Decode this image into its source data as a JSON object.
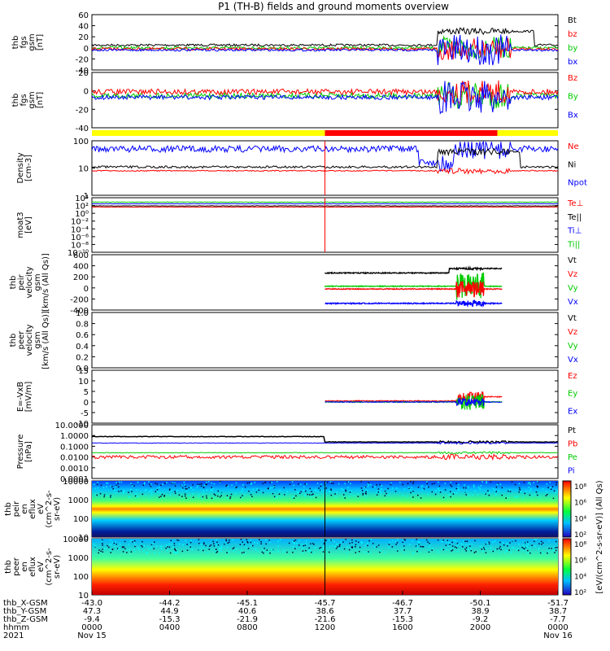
{
  "title": "P1 (TH-B) fields and ground moments overview",
  "panels": [
    {
      "ylabel": [
        "thb",
        "fgs",
        "gsm",
        "[nT]"
      ],
      "ticks": [
        "60",
        "40",
        "20",
        "0",
        "-20",
        "-40"
      ],
      "legend": [
        [
          "Bt",
          "#000000"
        ],
        [
          "bz",
          "#ff0000"
        ],
        [
          "by",
          "#00cc00"
        ],
        [
          "bx",
          "#0000ff"
        ]
      ]
    },
    {
      "ylabel": [
        "thb",
        "fgs",
        "gsm",
        "[nT]"
      ],
      "ticks": [
        "20",
        "0",
        "-20",
        "-40"
      ],
      "legend": [
        [
          "Bz",
          "#ff0000"
        ],
        [
          "By",
          "#00cc00"
        ],
        [
          "Bx",
          "#0000ff"
        ]
      ]
    },
    {
      "ylabel": [
        "Density",
        "[cm-3]"
      ],
      "ticks": [
        "100",
        "10",
        "1"
      ],
      "legend": [
        [
          "Ne",
          "#ff0000"
        ],
        [
          "Ni",
          "#000000"
        ],
        [
          "Npot",
          "#0000ff"
        ]
      ]
    },
    {
      "ylabel": [
        "moat3",
        "[eV]"
      ],
      "ticks": [
        "10⁴",
        "10²",
        "10⁰",
        "10⁻²",
        "10⁻⁴",
        "10⁻⁶",
        "10⁻⁸",
        "10⁻¹⁰"
      ],
      "legend": [
        [
          "Te⊥",
          "#ff0000"
        ],
        [
          "Te||",
          "#000000"
        ],
        [
          "Ti⊥",
          "#0000ff"
        ],
        [
          "Ti||",
          "#00cc00"
        ]
      ]
    },
    {
      "ylabel": [
        "thb",
        "peir",
        "velocity",
        "gsm",
        "[km/s (All Qs)]"
      ],
      "ticks": [
        "600",
        "400",
        "200",
        "0",
        "-200",
        "-400"
      ],
      "legend": [
        [
          "Vt",
          "#000000"
        ],
        [
          "Vz",
          "#ff0000"
        ],
        [
          "Vy",
          "#00cc00"
        ],
        [
          "Vx",
          "#0000ff"
        ]
      ]
    },
    {
      "ylabel": [
        "thb",
        "peer",
        "velocity",
        "gsm",
        "[km/s (All Qs)]"
      ],
      "ticks": [
        "1.0",
        "0.8",
        "0.6",
        "0.4",
        "0.2",
        "0.0"
      ],
      "legend": [
        [
          "Vt",
          "#000000"
        ],
        [
          "Vz",
          "#ff0000"
        ],
        [
          "Vy",
          "#00cc00"
        ],
        [
          "Vx",
          "#0000ff"
        ]
      ]
    },
    {
      "ylabel": [
        "E=-VxB",
        "[mV/m]"
      ],
      "ticks": [
        "15",
        "10",
        "5",
        "0",
        "-5",
        "-10"
      ],
      "legend": [
        [
          "Ez",
          "#ff0000"
        ],
        [
          "Ey",
          "#00cc00"
        ],
        [
          "Ex",
          "#0000ff"
        ]
      ]
    },
    {
      "ylabel": [
        "Pressure",
        "[nPa]"
      ],
      "ticks": [
        "10.0000",
        "1.0000",
        "0.1000",
        "0.0100",
        "0.0010",
        "0.0001"
      ],
      "legend": [
        [
          "Pt",
          "#000000"
        ],
        [
          "Pb",
          "#ff0000"
        ],
        [
          "Pe",
          "#00cc00"
        ],
        [
          "Pi",
          "#0000ff"
        ]
      ]
    },
    {
      "ylabel": [
        "thb",
        "peir",
        "en",
        "eflux",
        "eV",
        "(cm^2-s-",
        "sr-eV)"
      ],
      "ticks": [
        "10000",
        "1000",
        "100",
        "10"
      ],
      "legend": []
    },
    {
      "ylabel": [
        "thb",
        "peer",
        "en",
        "eflux",
        "eV",
        "(cm^2-s-",
        "sr-eV)"
      ],
      "ticks": [
        "10000",
        "1000",
        "100",
        "10"
      ],
      "legend": []
    }
  ],
  "colorbar": {
    "label": "[eV/(cm^2-s-sr-eV)] (All Qs)",
    "ticks": [
      "10⁸",
      "10⁶",
      "10⁴",
      "10²"
    ],
    "ticks2": [
      "10⁸",
      "10⁶",
      "10⁴",
      "10²"
    ]
  },
  "xaxis": {
    "rows": [
      {
        "label": "thb_X-GSM",
        "values": [
          "-43.0",
          "-44.2",
          "-45.1",
          "-45.7",
          "-46.7",
          "-50.1",
          "-51.7"
        ]
      },
      {
        "label": "thb_Y-GSM",
        "values": [
          "47.3",
          "44.9",
          "40.6",
          "38.6",
          "37.7",
          "38.9",
          "38.7"
        ]
      },
      {
        "label": "thb_Z-GSM",
        "values": [
          "-9.4",
          "-15.3",
          "-21.9",
          "-21.6",
          "-15.3",
          "-9.2",
          "-7.7"
        ]
      },
      {
        "label": "hhmm",
        "values": [
          "0000",
          "0400",
          "0800",
          "1200",
          "1600",
          "2000",
          "0000"
        ]
      },
      {
        "label": "2021",
        "values": [
          "Nov 15",
          "",
          "",
          "",
          "",
          "",
          "Nov 16"
        ]
      }
    ]
  },
  "chart_data": {
    "type": "line",
    "x": [
      "0000",
      "0400",
      "0800",
      "1200",
      "1600",
      "2000",
      "0000"
    ],
    "bar_segments": [
      {
        "from": "0000",
        "to": "1200",
        "color": "#ffff00"
      },
      {
        "from": "1200",
        "to": "2040",
        "color": "#ff0000"
      },
      {
        "from": "2040",
        "to": "0000",
        "color": "#ffff00"
      }
    ]
  }
}
